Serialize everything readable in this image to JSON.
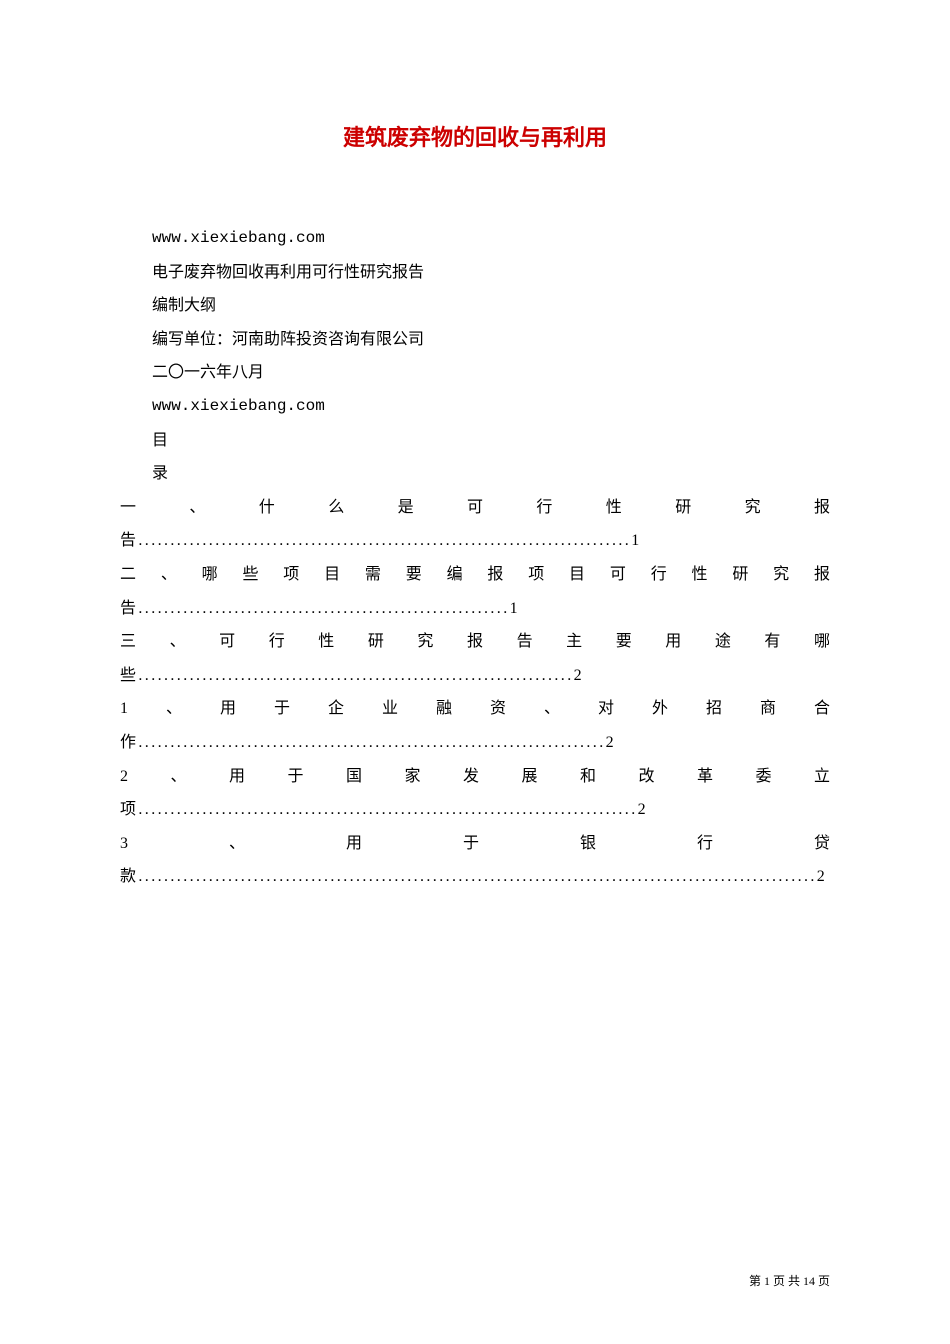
{
  "document": {
    "title": "建筑废弃物的回收与再利用",
    "title_color": "#cc0000",
    "title_fontsize": 22,
    "body_fontsize": 16,
    "body_color": "#000000",
    "background_color": "#ffffff",
    "url1": "www.xiexiebang.com",
    "line1": "电子废弃物回收再利用可行性研究报告",
    "line2": "编制大纲",
    "line3": "编写单位：河南助阵投资咨询有限公司",
    "line4": "二〇一六年八月",
    "url2": "www.xiexiebang.com",
    "line5": "目",
    "line6": "录",
    "toc": [
      {
        "first": "一、什么是可行性研究报",
        "cont": "告.............................................................................1"
      },
      {
        "first": "二、哪些项目需要编报项目可行性研究报",
        "cont": "告..........................................................1"
      },
      {
        "first": "三、可行性研究报告主要用途有哪",
        "cont": "些....................................................................2"
      },
      {
        "first": "1、用于企业融资、对外招商合",
        "cont": "作.........................................................................2"
      },
      {
        "first": "2、用于国家发展和改革委立",
        "cont": "项..............................................................................2"
      },
      {
        "first": "3、用于银行贷",
        "cont": "款..........................................................................................................2"
      }
    ],
    "footer": {
      "prefix": "第",
      "current": "1",
      "mid": "页 共",
      "total": "14",
      "suffix": "页",
      "fontsize": 12
    }
  }
}
